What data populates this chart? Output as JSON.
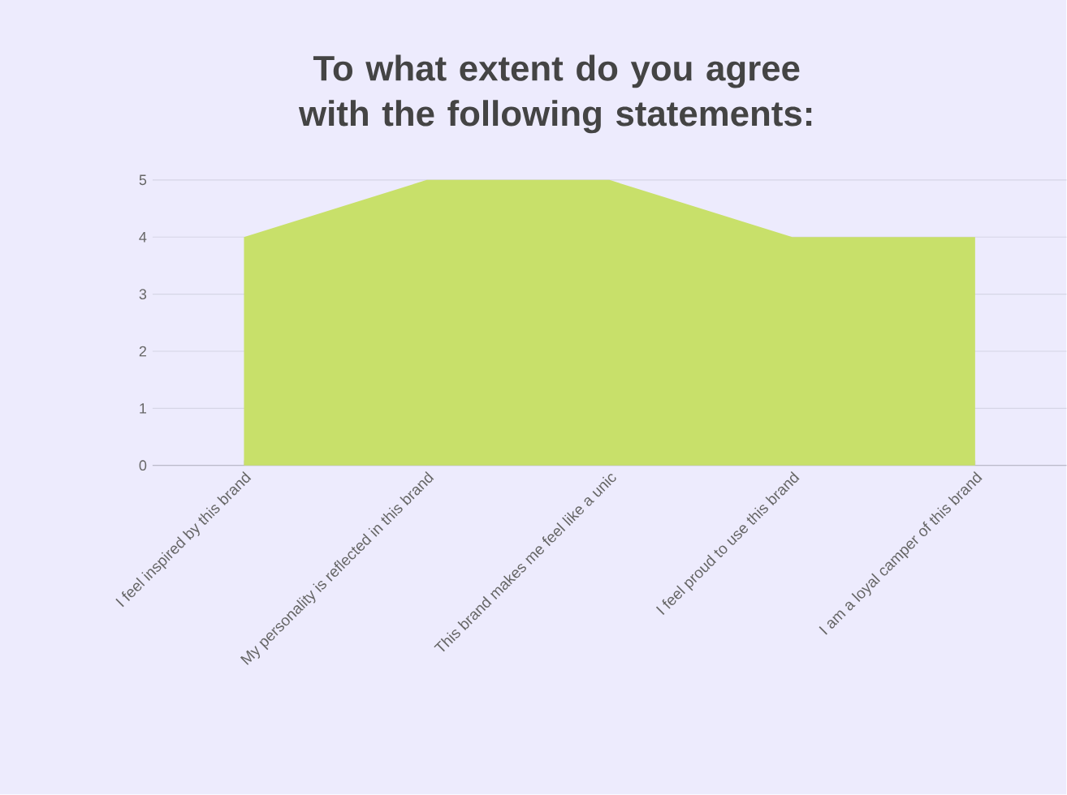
{
  "chart_data": {
    "type": "area",
    "title": "To what extent do you agree with the following statements:",
    "categories": [
      "I feel inspired by this brand",
      "My personality is reflected in this brand",
      "This brand makes me feel like a unic",
      "I feel proud to use this brand",
      "I am a loyal camper of this brand"
    ],
    "values": [
      4,
      5,
      5,
      4,
      4
    ],
    "color": "#c8e06a",
    "ylim": [
      0,
      5
    ],
    "yticks": [
      0,
      1,
      2,
      3,
      4,
      5
    ],
    "grid": "y"
  }
}
